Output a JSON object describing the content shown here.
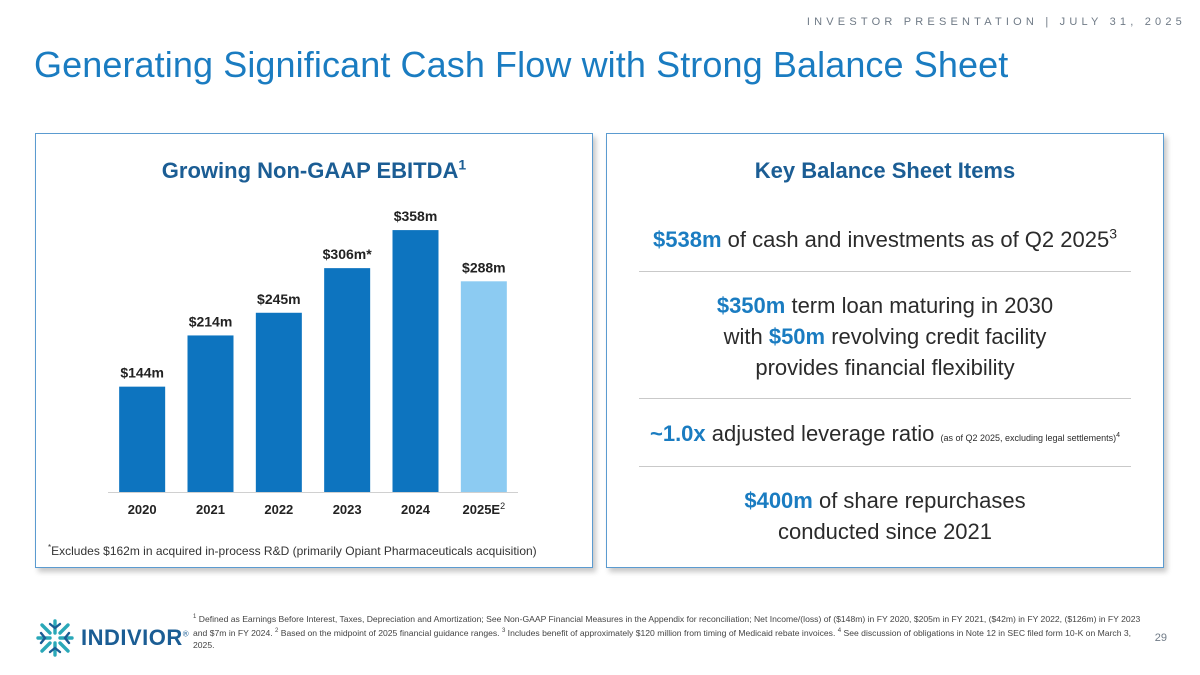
{
  "header": {
    "topline": "INVESTOR PRESENTATION | JULY 31, 2025",
    "title": "Generating Significant Cash Flow with Strong Balance Sheet"
  },
  "left_panel": {
    "title": "Growing Non-GAAP EBITDA",
    "title_sup": "1",
    "footnote_marker": "*",
    "footnote": "Excludes $162m in acquired in-process R&D (primarily Opiant Pharmaceuticals acquisition)"
  },
  "chart_data": {
    "type": "bar",
    "title": "Growing Non-GAAP EBITDA",
    "categories": [
      "2020",
      "2021",
      "2022",
      "2023",
      "2024",
      "2025E"
    ],
    "category_sups": [
      "",
      "",
      "",
      "",
      "",
      "2"
    ],
    "values": [
      144,
      214,
      245,
      306,
      358,
      288
    ],
    "data_labels": [
      "$144m",
      "$214m",
      "$245m",
      "$306m*",
      "$358m",
      "$288m"
    ],
    "bar_colors": [
      "#0d74bf",
      "#0d74bf",
      "#0d74bf",
      "#0d74bf",
      "#0d74bf",
      "#8ccbf2"
    ],
    "xlabel": "",
    "ylabel": "",
    "ylim": [
      0,
      380
    ],
    "grid": false,
    "legend": "none"
  },
  "right_panel": {
    "title": "Key Balance Sheet Items",
    "item1": {
      "highlight": "$538m",
      "text": " of cash and investments as of Q2 2025",
      "sup": "3"
    },
    "item2": {
      "highlight1": "$350m",
      "text1": " term loan maturing in 2030",
      "text2a": "with ",
      "highlight2": "$50m",
      "text2b": " revolving credit facility",
      "text3": "provides financial flexibility"
    },
    "item3": {
      "highlight": "~1.0x",
      "text": " adjusted leverage ratio ",
      "small": "(as of Q2 2025, excluding legal settlements)",
      "sup": "4"
    },
    "item4": {
      "highlight": "$400m",
      "text1": " of share repurchases",
      "text2": "conducted since 2021"
    }
  },
  "footer": {
    "logo_text": "INDIVIOR",
    "logo_mark": "®",
    "fn1_num": "1",
    "fn1": " Defined as Earnings Before Interest, Taxes, Depreciation and Amortization; See Non-GAAP Financial Measures in the Appendix for reconciliation; Net Income/(loss) of ($148m) in FY 2020, $205m in FY 2021, ($42m) in FY 2022, ($126m) in FY 2023 and $7m in FY 2024. ",
    "fn2_num": "2",
    "fn2": " Based on the midpoint of 2025 financial guidance ranges. ",
    "fn3_num": "3",
    "fn3": " Includes benefit of approximately $120 million from timing of Medicaid rebate invoices. ",
    "fn4_num": "4",
    "fn4": " See discussion of obligations in Note 12 in SEC filed form 10-K on March 3, 2025.",
    "page_number": "29"
  },
  "colors": {
    "brand_blue": "#1a7cc1",
    "dark_blue": "#1b5d94",
    "bar": "#0d74bf",
    "bar_estimate": "#8ccbf2",
    "logo_teal": "#2aa8b8"
  }
}
